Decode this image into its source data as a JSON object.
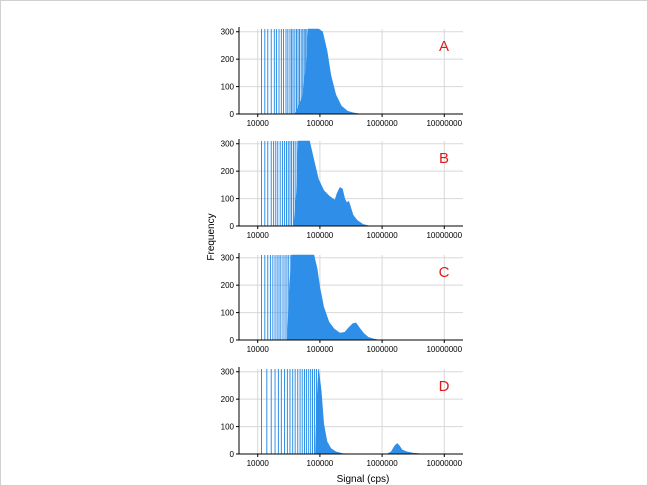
{
  "chart_data": {
    "type": "histogram",
    "xlabel": "Signal (cps)",
    "ylabel": "Frequency",
    "x_scale": "log",
    "xlim": [
      5000,
      20000000
    ],
    "ylim": [
      0,
      310
    ],
    "x_ticks": [
      "10000",
      "100000",
      "1000000",
      "10000000"
    ],
    "y_ticks": [
      "0",
      "100",
      "200",
      "300"
    ],
    "grid": true,
    "color": "#2f8fe8",
    "annotation_color": "#e01b1b",
    "panels": [
      {
        "label": "A",
        "spikes": [
          11500,
          13000,
          14500,
          16500,
          18500,
          20000,
          22000,
          24000,
          26000,
          28500,
          30500,
          33000,
          35000,
          37000,
          39500,
          42000,
          44500,
          47000,
          50000,
          53000,
          56000,
          59000,
          62000
        ],
        "envelope": [
          [
            40000,
            0
          ],
          [
            52000,
            60
          ],
          [
            60000,
            170
          ],
          [
            65000,
            310
          ],
          [
            95000,
            310
          ],
          [
            110000,
            300
          ],
          [
            130000,
            230
          ],
          [
            150000,
            140
          ],
          [
            180000,
            70
          ],
          [
            220000,
            30
          ],
          [
            280000,
            10
          ],
          [
            350000,
            4
          ],
          [
            450000,
            0
          ]
        ]
      },
      {
        "label": "B",
        "spikes": [
          11500,
          13000,
          14500,
          16500,
          18000,
          19500,
          21000,
          23000,
          25000,
          27000,
          29000,
          31000,
          33000,
          35000,
          37500,
          40000,
          43000,
          46000
        ],
        "envelope": [
          [
            38000,
            0
          ],
          [
            42000,
            120
          ],
          [
            45000,
            310
          ],
          [
            68000,
            310
          ],
          [
            80000,
            240
          ],
          [
            95000,
            170
          ],
          [
            115000,
            130
          ],
          [
            140000,
            110
          ],
          [
            160000,
            100
          ],
          [
            175000,
            95
          ],
          [
            190000,
            120
          ],
          [
            210000,
            140
          ],
          [
            230000,
            135
          ],
          [
            250000,
            100
          ],
          [
            270000,
            85
          ],
          [
            290000,
            90
          ],
          [
            310000,
            70
          ],
          [
            340000,
            40
          ],
          [
            400000,
            20
          ],
          [
            500000,
            5
          ],
          [
            600000,
            1
          ],
          [
            750000,
            0
          ]
        ]
      },
      {
        "label": "C",
        "spikes": [
          11500,
          13000,
          14500,
          16000,
          17500,
          19000,
          20500,
          22000,
          23500,
          25500,
          27500,
          29500,
          31500,
          34000,
          36500,
          39000,
          42000,
          45000,
          48000,
          52000,
          56000,
          60000
        ],
        "envelope": [
          [
            30000,
            0
          ],
          [
            32000,
            160
          ],
          [
            35000,
            310
          ],
          [
            80000,
            310
          ],
          [
            90000,
            260
          ],
          [
            100000,
            190
          ],
          [
            115000,
            120
          ],
          [
            140000,
            65
          ],
          [
            170000,
            40
          ],
          [
            210000,
            25
          ],
          [
            250000,
            28
          ],
          [
            290000,
            45
          ],
          [
            340000,
            60
          ],
          [
            380000,
            62
          ],
          [
            430000,
            45
          ],
          [
            500000,
            25
          ],
          [
            600000,
            10
          ],
          [
            750000,
            3
          ],
          [
            900000,
            0
          ]
        ]
      },
      {
        "label": "D",
        "spikes": [
          11500,
          14000,
          16500,
          19000,
          21500,
          24000,
          27000,
          30000,
          33000,
          36500,
          40000,
          44000,
          48000,
          52000,
          56500,
          61000,
          66000,
          71000,
          76000,
          82000,
          88000
        ],
        "envelope": [
          [
            85000,
            0
          ],
          [
            88000,
            150
          ],
          [
            95000,
            310
          ],
          [
            105000,
            230
          ],
          [
            115000,
            110
          ],
          [
            130000,
            45
          ],
          [
            150000,
            20
          ],
          [
            180000,
            8
          ],
          [
            230000,
            2
          ],
          [
            300000,
            0
          ],
          [
            1200000,
            0
          ],
          [
            1400000,
            8
          ],
          [
            1600000,
            30
          ],
          [
            1750000,
            38
          ],
          [
            1900000,
            30
          ],
          [
            2100000,
            15
          ],
          [
            2500000,
            8
          ],
          [
            3200000,
            3
          ],
          [
            4000000,
            1
          ],
          [
            5000000,
            0
          ]
        ]
      }
    ]
  }
}
